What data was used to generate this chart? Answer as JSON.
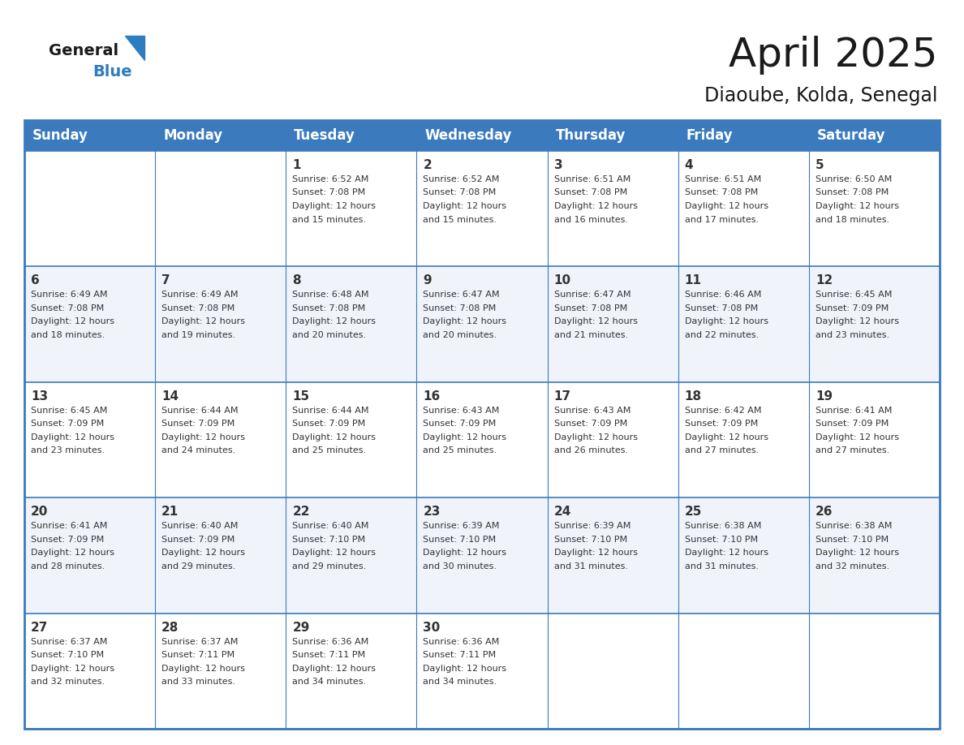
{
  "title": "April 2025",
  "subtitle": "Diaoube, Kolda, Senegal",
  "header_color": "#3A7ABD",
  "header_text_color": "#FFFFFF",
  "border_color": "#3A7ABD",
  "text_color": "#333333",
  "days_of_week": [
    "Sunday",
    "Monday",
    "Tuesday",
    "Wednesday",
    "Thursday",
    "Friday",
    "Saturday"
  ],
  "weeks": [
    [
      {
        "day": "",
        "sunrise": "",
        "sunset": "",
        "daylight": ""
      },
      {
        "day": "",
        "sunrise": "",
        "sunset": "",
        "daylight": ""
      },
      {
        "day": "1",
        "sunrise": "6:52 AM",
        "sunset": "7:08 PM",
        "daylight": "12 hours and 15 minutes."
      },
      {
        "day": "2",
        "sunrise": "6:52 AM",
        "sunset": "7:08 PM",
        "daylight": "12 hours and 15 minutes."
      },
      {
        "day": "3",
        "sunrise": "6:51 AM",
        "sunset": "7:08 PM",
        "daylight": "12 hours and 16 minutes."
      },
      {
        "day": "4",
        "sunrise": "6:51 AM",
        "sunset": "7:08 PM",
        "daylight": "12 hours and 17 minutes."
      },
      {
        "day": "5",
        "sunrise": "6:50 AM",
        "sunset": "7:08 PM",
        "daylight": "12 hours and 18 minutes."
      }
    ],
    [
      {
        "day": "6",
        "sunrise": "6:49 AM",
        "sunset": "7:08 PM",
        "daylight": "12 hours and 18 minutes."
      },
      {
        "day": "7",
        "sunrise": "6:49 AM",
        "sunset": "7:08 PM",
        "daylight": "12 hours and 19 minutes."
      },
      {
        "day": "8",
        "sunrise": "6:48 AM",
        "sunset": "7:08 PM",
        "daylight": "12 hours and 20 minutes."
      },
      {
        "day": "9",
        "sunrise": "6:47 AM",
        "sunset": "7:08 PM",
        "daylight": "12 hours and 20 minutes."
      },
      {
        "day": "10",
        "sunrise": "6:47 AM",
        "sunset": "7:08 PM",
        "daylight": "12 hours and 21 minutes."
      },
      {
        "day": "11",
        "sunrise": "6:46 AM",
        "sunset": "7:08 PM",
        "daylight": "12 hours and 22 minutes."
      },
      {
        "day": "12",
        "sunrise": "6:45 AM",
        "sunset": "7:09 PM",
        "daylight": "12 hours and 23 minutes."
      }
    ],
    [
      {
        "day": "13",
        "sunrise": "6:45 AM",
        "sunset": "7:09 PM",
        "daylight": "12 hours and 23 minutes."
      },
      {
        "day": "14",
        "sunrise": "6:44 AM",
        "sunset": "7:09 PM",
        "daylight": "12 hours and 24 minutes."
      },
      {
        "day": "15",
        "sunrise": "6:44 AM",
        "sunset": "7:09 PM",
        "daylight": "12 hours and 25 minutes."
      },
      {
        "day": "16",
        "sunrise": "6:43 AM",
        "sunset": "7:09 PM",
        "daylight": "12 hours and 25 minutes."
      },
      {
        "day": "17",
        "sunrise": "6:43 AM",
        "sunset": "7:09 PM",
        "daylight": "12 hours and 26 minutes."
      },
      {
        "day": "18",
        "sunrise": "6:42 AM",
        "sunset": "7:09 PM",
        "daylight": "12 hours and 27 minutes."
      },
      {
        "day": "19",
        "sunrise": "6:41 AM",
        "sunset": "7:09 PM",
        "daylight": "12 hours and 27 minutes."
      }
    ],
    [
      {
        "day": "20",
        "sunrise": "6:41 AM",
        "sunset": "7:09 PM",
        "daylight": "12 hours and 28 minutes."
      },
      {
        "day": "21",
        "sunrise": "6:40 AM",
        "sunset": "7:09 PM",
        "daylight": "12 hours and 29 minutes."
      },
      {
        "day": "22",
        "sunrise": "6:40 AM",
        "sunset": "7:10 PM",
        "daylight": "12 hours and 29 minutes."
      },
      {
        "day": "23",
        "sunrise": "6:39 AM",
        "sunset": "7:10 PM",
        "daylight": "12 hours and 30 minutes."
      },
      {
        "day": "24",
        "sunrise": "6:39 AM",
        "sunset": "7:10 PM",
        "daylight": "12 hours and 31 minutes."
      },
      {
        "day": "25",
        "sunrise": "6:38 AM",
        "sunset": "7:10 PM",
        "daylight": "12 hours and 31 minutes."
      },
      {
        "day": "26",
        "sunrise": "6:38 AM",
        "sunset": "7:10 PM",
        "daylight": "12 hours and 32 minutes."
      }
    ],
    [
      {
        "day": "27",
        "sunrise": "6:37 AM",
        "sunset": "7:10 PM",
        "daylight": "12 hours and 32 minutes."
      },
      {
        "day": "28",
        "sunrise": "6:37 AM",
        "sunset": "7:11 PM",
        "daylight": "12 hours and 33 minutes."
      },
      {
        "day": "29",
        "sunrise": "6:36 AM",
        "sunset": "7:11 PM",
        "daylight": "12 hours and 34 minutes."
      },
      {
        "day": "30",
        "sunrise": "6:36 AM",
        "sunset": "7:11 PM",
        "daylight": "12 hours and 34 minutes."
      },
      {
        "day": "",
        "sunrise": "",
        "sunset": "",
        "daylight": ""
      },
      {
        "day": "",
        "sunrise": "",
        "sunset": "",
        "daylight": ""
      },
      {
        "day": "",
        "sunrise": "",
        "sunset": "",
        "daylight": ""
      }
    ]
  ],
  "logo_general_color": "#1a1a1a",
  "logo_blue_color": "#2E7DC0",
  "title_fontsize": 36,
  "subtitle_fontsize": 17,
  "header_fontsize": 12,
  "day_num_fontsize": 11,
  "cell_text_fontsize": 8
}
